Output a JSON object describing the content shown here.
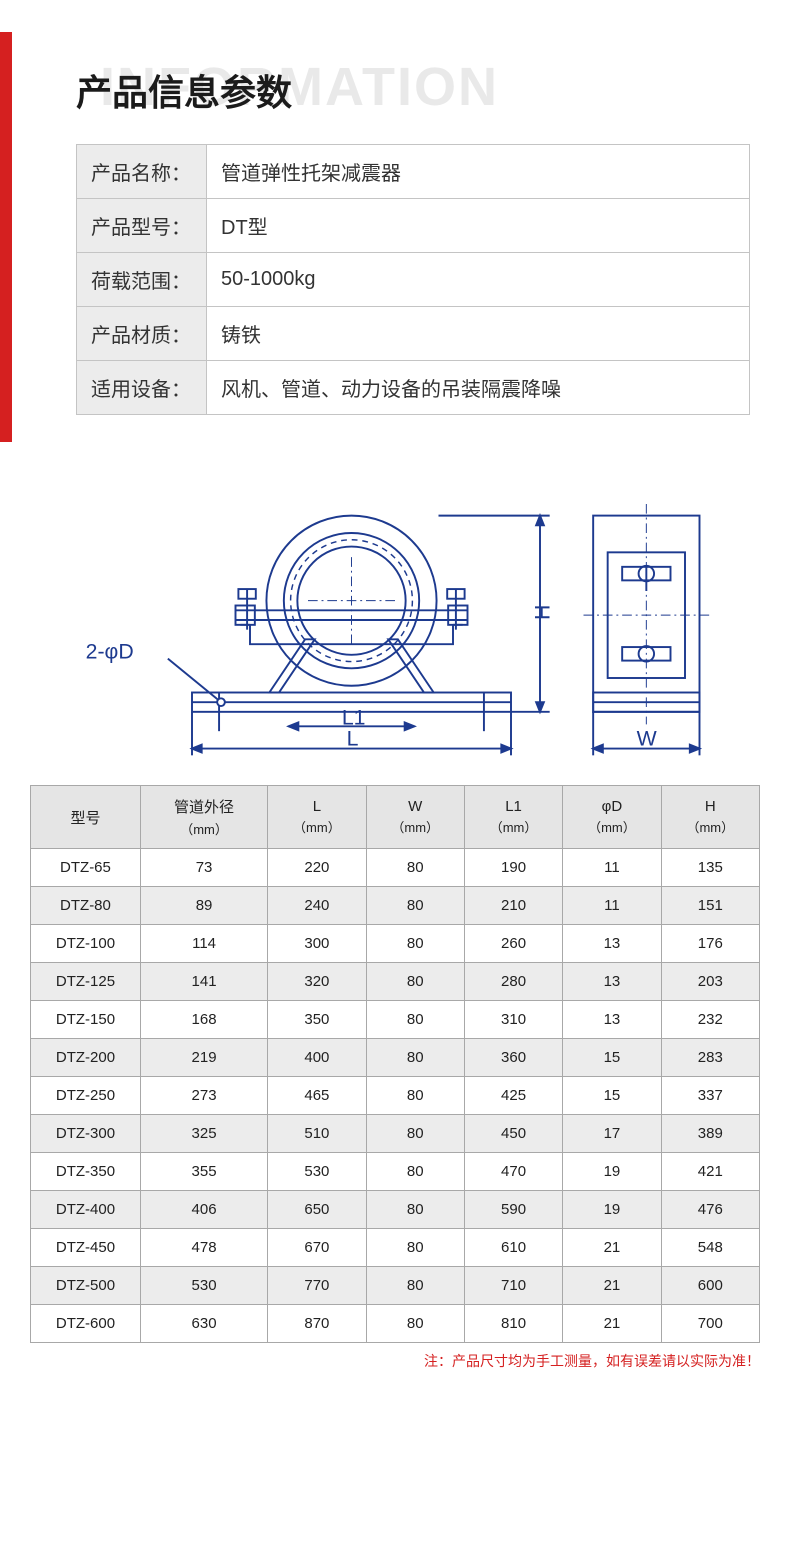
{
  "header": {
    "watermark": "INFORMATION",
    "title": "产品信息参数"
  },
  "info_rows": [
    {
      "label": "产品名称：",
      "value": "管道弹性托架减震器"
    },
    {
      "label": "产品型号：",
      "value": "DT型"
    },
    {
      "label": "荷载范围：",
      "value": "50-1000kg"
    },
    {
      "label": "产品材质：",
      "value": "铸铁"
    },
    {
      "label": "适用设备：",
      "value": "风机、管道、动力设备的吊装隔震降噪"
    }
  ],
  "diagram_labels": {
    "left_annot": "2-φD",
    "L1": "L1",
    "L": "L",
    "W": "W",
    "H": "H"
  },
  "spec_table": {
    "columns": [
      {
        "name": "型号",
        "unit": ""
      },
      {
        "name": "管道外径",
        "unit": "（mm）"
      },
      {
        "name": "L",
        "unit": "（mm）"
      },
      {
        "name": "W",
        "unit": "（mm）"
      },
      {
        "name": "L1",
        "unit": "（mm）"
      },
      {
        "name": "φD",
        "unit": "（mm）"
      },
      {
        "name": "H",
        "unit": "（mm）"
      }
    ],
    "rows": [
      [
        "DTZ-65",
        "73",
        "220",
        "80",
        "190",
        "11",
        "135"
      ],
      [
        "DTZ-80",
        "89",
        "240",
        "80",
        "210",
        "11",
        "151"
      ],
      [
        "DTZ-100",
        "114",
        "300",
        "80",
        "260",
        "13",
        "176"
      ],
      [
        "DTZ-125",
        "141",
        "320",
        "80",
        "280",
        "13",
        "203"
      ],
      [
        "DTZ-150",
        "168",
        "350",
        "80",
        "310",
        "13",
        "232"
      ],
      [
        "DTZ-200",
        "219",
        "400",
        "80",
        "360",
        "15",
        "283"
      ],
      [
        "DTZ-250",
        "273",
        "465",
        "80",
        "425",
        "15",
        "337"
      ],
      [
        "DTZ-300",
        "325",
        "510",
        "80",
        "450",
        "17",
        "389"
      ],
      [
        "DTZ-350",
        "355",
        "530",
        "80",
        "470",
        "19",
        "421"
      ],
      [
        "DTZ-400",
        "406",
        "650",
        "80",
        "590",
        "19",
        "476"
      ],
      [
        "DTZ-450",
        "478",
        "670",
        "80",
        "610",
        "21",
        "548"
      ],
      [
        "DTZ-500",
        "530",
        "770",
        "80",
        "710",
        "21",
        "600"
      ],
      [
        "DTZ-600",
        "630",
        "870",
        "80",
        "810",
        "21",
        "700"
      ]
    ],
    "col_widths": [
      "95",
      "110",
      "85",
      "85",
      "85",
      "85",
      "85"
    ]
  },
  "footnote": "注：产品尺寸均为手工测量，如有误差请以实际为准！",
  "colors": {
    "accent_red": "#d52020",
    "border_gray": "#a8a8a8",
    "bg_gray": "#ececec",
    "watermark_gray": "#e9e9e9",
    "diagram_blue": "#1d3a8f"
  }
}
